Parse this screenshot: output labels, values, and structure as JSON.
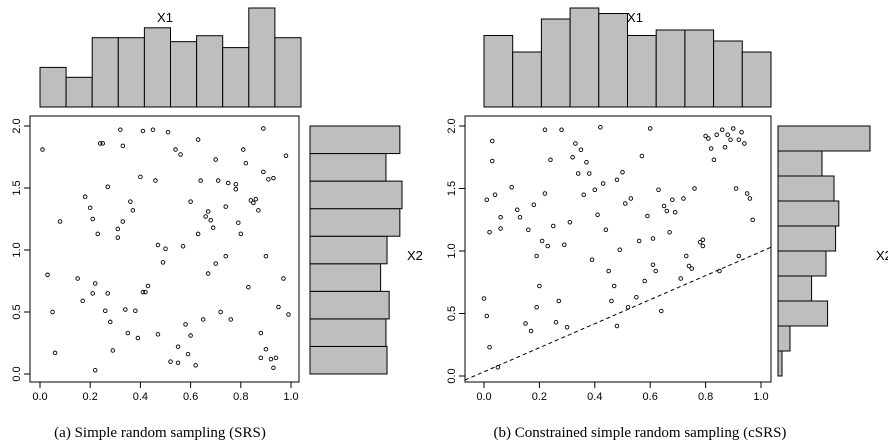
{
  "chart_data": [
    {
      "type": "scatter",
      "caption": "(a) Simple random sampling (SRS)",
      "xlabel": "X1",
      "ylabel": "X2",
      "xlim": [
        0,
        1
      ],
      "ylim": [
        0,
        2
      ],
      "x_ticks": [
        "0.0",
        "0.2",
        "0.4",
        "0.6",
        "0.8",
        "1.0"
      ],
      "y_ticks": [
        "0.0",
        "0.5",
        "1.0",
        "1.5",
        "2.0"
      ],
      "marginal_x_counts": [
        4,
        3,
        7,
        7,
        8,
        6.6,
        7.2,
        6,
        10,
        7
      ],
      "marginal_y_counts": [
        7.2,
        7.1,
        7.4,
        6.6,
        7.2,
        8.4,
        8.6,
        7.1,
        8.4
      ],
      "points": [
        [
          0.01,
          1.81
        ],
        [
          0.03,
          0.8
        ],
        [
          0.05,
          0.5
        ],
        [
          0.06,
          0.17
        ],
        [
          0.08,
          1.23
        ],
        [
          0.15,
          0.77
        ],
        [
          0.17,
          0.59
        ],
        [
          0.18,
          1.43
        ],
        [
          0.2,
          1.34
        ],
        [
          0.21,
          0.65
        ],
        [
          0.22,
          0.03
        ],
        [
          0.22,
          0.73
        ],
        [
          0.23,
          1.13
        ],
        [
          0.24,
          1.86
        ],
        [
          0.25,
          1.86
        ],
        [
          0.26,
          0.51
        ],
        [
          0.27,
          0.65
        ],
        [
          0.28,
          0.42
        ],
        [
          0.29,
          0.19
        ],
        [
          0.31,
          1.17
        ],
        [
          0.31,
          1.1
        ],
        [
          0.32,
          1.97
        ],
        [
          0.33,
          1.84
        ],
        [
          0.33,
          1.23
        ],
        [
          0.34,
          0.52
        ],
        [
          0.35,
          0.33
        ],
        [
          0.37,
          1.32
        ],
        [
          0.38,
          0.51
        ],
        [
          0.39,
          0.29
        ],
        [
          0.4,
          1.59
        ],
        [
          0.41,
          1.96
        ],
        [
          0.41,
          0.66
        ],
        [
          0.42,
          0.66
        ],
        [
          0.43,
          0.71
        ],
        [
          0.45,
          1.97
        ],
        [
          0.46,
          1.56
        ],
        [
          0.47,
          0.32
        ],
        [
          0.47,
          1.04
        ],
        [
          0.49,
          0.9
        ],
        [
          0.5,
          1.01
        ],
        [
          0.51,
          1.95
        ],
        [
          0.52,
          0.1
        ],
        [
          0.54,
          1.81
        ],
        [
          0.55,
          0.22
        ],
        [
          0.56,
          1.77
        ],
        [
          0.57,
          1.03
        ],
        [
          0.58,
          0.4
        ],
        [
          0.59,
          0.16
        ],
        [
          0.6,
          0.31
        ],
        [
          0.6,
          1.39
        ],
        [
          0.62,
          0.07
        ],
        [
          0.63,
          1.89
        ],
        [
          0.63,
          1.13
        ],
        [
          0.64,
          1.56
        ],
        [
          0.65,
          0.44
        ],
        [
          0.66,
          1.27
        ],
        [
          0.67,
          1.31
        ],
        [
          0.68,
          1.24
        ],
        [
          0.69,
          1.18
        ],
        [
          0.7,
          1.73
        ],
        [
          0.7,
          0.89
        ],
        [
          0.71,
          1.56
        ],
        [
          0.72,
          0.5
        ],
        [
          0.74,
          1.35
        ],
        [
          0.74,
          0.95
        ],
        [
          0.75,
          1.54
        ],
        [
          0.76,
          0.44
        ],
        [
          0.78,
          1.49
        ],
        [
          0.78,
          1.53
        ],
        [
          0.79,
          1.22
        ],
        [
          0.8,
          1.13
        ],
        [
          0.81,
          1.81
        ],
        [
          0.82,
          1.7
        ],
        [
          0.83,
          0.7
        ],
        [
          0.84,
          1.4
        ],
        [
          0.85,
          1.38
        ],
        [
          0.86,
          1.41
        ],
        [
          0.87,
          1.32
        ],
        [
          0.88,
          0.33
        ],
        [
          0.88,
          0.13
        ],
        [
          0.89,
          1.98
        ],
        [
          0.89,
          1.63
        ],
        [
          0.9,
          0.95
        ],
        [
          0.9,
          0.2
        ],
        [
          0.91,
          1.57
        ],
        [
          0.92,
          0.12
        ],
        [
          0.93,
          0.05
        ],
        [
          0.93,
          1.58
        ],
        [
          0.94,
          0.13
        ],
        [
          0.95,
          0.54
        ],
        [
          0.97,
          0.77
        ],
        [
          0.98,
          1.76
        ],
        [
          0.99,
          0.48
        ],
        [
          0.55,
          0.09
        ],
        [
          0.67,
          0.81
        ],
        [
          0.21,
          1.25
        ],
        [
          0.36,
          1.39
        ],
        [
          0.27,
          1.51
        ]
      ]
    },
    {
      "type": "scatter",
      "caption": "(b) Constrained simple random sampling (cSRS)",
      "xlabel": "X1",
      "ylabel": "X2",
      "xlim": [
        0,
        1
      ],
      "ylim": [
        0,
        2
      ],
      "x_ticks": [
        "0.0",
        "0.2",
        "0.4",
        "0.6",
        "0.8",
        "1.0"
      ],
      "y_ticks": [
        "0.0",
        "0.5",
        "1.0",
        "1.5",
        "2.0"
      ],
      "constraint_line": [
        [
          0,
          0
        ],
        [
          1,
          1
        ]
      ],
      "marginal_x_counts": [
        6.5,
        5,
        8,
        9,
        8.5,
        6.5,
        7,
        7,
        6,
        5
      ],
      "marginal_y_counts": [
        0.5,
        1.5,
        6.2,
        4.2,
        6.0,
        7.2,
        7.6,
        7.0,
        5.5,
        11.5
      ],
      "points": [
        [
          0.0,
          0.62
        ],
        [
          0.01,
          0.48
        ],
        [
          0.01,
          1.41
        ],
        [
          0.02,
          1.15
        ],
        [
          0.02,
          0.23
        ],
        [
          0.03,
          1.88
        ],
        [
          0.03,
          1.72
        ],
        [
          0.04,
          1.45
        ],
        [
          0.05,
          0.07
        ],
        [
          0.06,
          1.18
        ],
        [
          0.06,
          1.27
        ],
        [
          0.1,
          1.51
        ],
        [
          0.12,
          1.33
        ],
        [
          0.13,
          1.27
        ],
        [
          0.15,
          0.42
        ],
        [
          0.16,
          1.17
        ],
        [
          0.17,
          0.36
        ],
        [
          0.18,
          1.37
        ],
        [
          0.19,
          0.96
        ],
        [
          0.19,
          0.55
        ],
        [
          0.2,
          0.72
        ],
        [
          0.21,
          1.08
        ],
        [
          0.22,
          1.46
        ],
        [
          0.22,
          1.97
        ],
        [
          0.23,
          1.04
        ],
        [
          0.24,
          1.73
        ],
        [
          0.25,
          1.2
        ],
        [
          0.26,
          0.43
        ],
        [
          0.27,
          0.6
        ],
        [
          0.28,
          1.97
        ],
        [
          0.29,
          1.05
        ],
        [
          0.3,
          0.39
        ],
        [
          0.31,
          1.23
        ],
        [
          0.32,
          1.75
        ],
        [
          0.33,
          1.86
        ],
        [
          0.34,
          1.62
        ],
        [
          0.35,
          1.81
        ],
        [
          0.36,
          1.45
        ],
        [
          0.37,
          1.71
        ],
        [
          0.38,
          1.62
        ],
        [
          0.39,
          0.93
        ],
        [
          0.4,
          1.49
        ],
        [
          0.41,
          1.29
        ],
        [
          0.42,
          1.99
        ],
        [
          0.43,
          1.54
        ],
        [
          0.44,
          1.17
        ],
        [
          0.45,
          0.84
        ],
        [
          0.46,
          0.6
        ],
        [
          0.47,
          0.72
        ],
        [
          0.48,
          0.4
        ],
        [
          0.48,
          1.57
        ],
        [
          0.49,
          1.01
        ],
        [
          0.5,
          1.63
        ],
        [
          0.51,
          1.38
        ],
        [
          0.52,
          0.55
        ],
        [
          0.53,
          1.42
        ],
        [
          0.55,
          0.63
        ],
        [
          0.56,
          1.08
        ],
        [
          0.57,
          1.76
        ],
        [
          0.58,
          0.76
        ],
        [
          0.59,
          1.28
        ],
        [
          0.6,
          1.98
        ],
        [
          0.61,
          1.1
        ],
        [
          0.61,
          0.89
        ],
        [
          0.62,
          0.84
        ],
        [
          0.63,
          1.49
        ],
        [
          0.64,
          0.52
        ],
        [
          0.65,
          1.36
        ],
        [
          0.66,
          1.32
        ],
        [
          0.67,
          1.15
        ],
        [
          0.68,
          1.41
        ],
        [
          0.69,
          1.31
        ],
        [
          0.71,
          0.78
        ],
        [
          0.72,
          1.42
        ],
        [
          0.73,
          0.96
        ],
        [
          0.74,
          0.88
        ],
        [
          0.75,
          0.86
        ],
        [
          0.76,
          1.5
        ],
        [
          0.78,
          1.07
        ],
        [
          0.79,
          1.04
        ],
        [
          0.8,
          1.92
        ],
        [
          0.81,
          1.9
        ],
        [
          0.82,
          1.82
        ],
        [
          0.83,
          1.73
        ],
        [
          0.84,
          1.93
        ],
        [
          0.85,
          0.84
        ],
        [
          0.86,
          1.97
        ],
        [
          0.87,
          1.83
        ],
        [
          0.88,
          1.93
        ],
        [
          0.89,
          1.89
        ],
        [
          0.9,
          1.98
        ],
        [
          0.91,
          1.5
        ],
        [
          0.92,
          0.96
        ],
        [
          0.93,
          1.95
        ],
        [
          0.94,
          1.86
        ],
        [
          0.95,
          1.46
        ],
        [
          0.96,
          1.42
        ],
        [
          0.97,
          1.25
        ],
        [
          0.79,
          1.09
        ],
        [
          0.92,
          1.89
        ]
      ]
    }
  ]
}
